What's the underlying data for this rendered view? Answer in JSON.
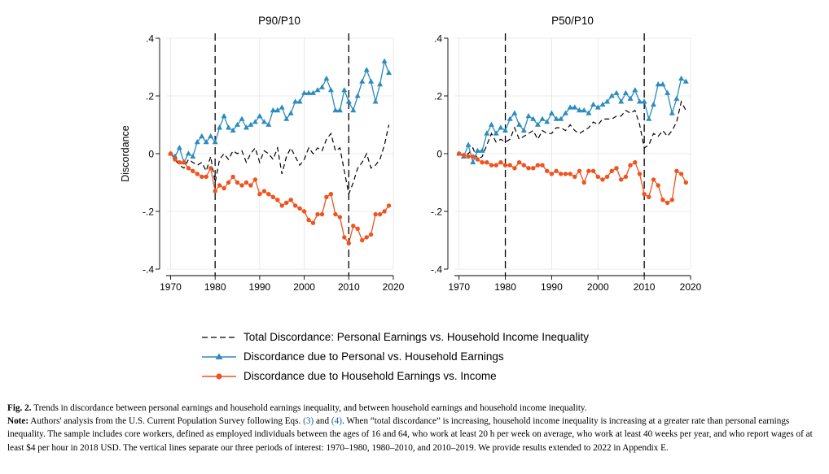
{
  "colors": {
    "total": "#000000",
    "personal": "#2b8cbe",
    "household": "#f0531f",
    "axis": "#000000",
    "grid": "#e4e4e4",
    "ref_line": "#000000"
  },
  "chart_data": [
    {
      "type": "line",
      "title": "P90/P10",
      "ylabel": "Discordance",
      "xlabel": "",
      "xlim": [
        1969,
        2020
      ],
      "ylim": [
        -0.4,
        0.4
      ],
      "xticks": [
        1970,
        1980,
        1990,
        2000,
        2010,
        2020
      ],
      "xtick_labels": [
        "1970",
        "1980",
        "1990",
        "2000",
        "2010",
        "2020"
      ],
      "yticks": [
        0.4,
        0.2,
        0,
        -0.2,
        -0.4
      ],
      "ytick_labels": [
        ".4",
        ".2",
        "0",
        "-.2",
        "-.4"
      ],
      "grid": true,
      "vlines": [
        1980,
        2010
      ],
      "x": [
        1970,
        1971,
        1972,
        1973,
        1974,
        1975,
        1976,
        1977,
        1978,
        1979,
        1980,
        1981,
        1982,
        1983,
        1984,
        1985,
        1986,
        1987,
        1988,
        1989,
        1990,
        1991,
        1992,
        1993,
        1994,
        1995,
        1996,
        1997,
        1998,
        1999,
        2000,
        2001,
        2002,
        2003,
        2004,
        2005,
        2006,
        2007,
        2008,
        2009,
        2010,
        2011,
        2012,
        2013,
        2014,
        2015,
        2016,
        2017,
        2018,
        2019
      ],
      "series": [
        {
          "name": "Total Discordance: Personal Earnings vs. Household Income Inequality",
          "key": "total",
          "values": [
            0.0,
            -0.02,
            -0.04,
            -0.05,
            -0.02,
            -0.03,
            -0.04,
            -0.03,
            -0.06,
            -0.01,
            -0.1,
            -0.02,
            0.0,
            -0.02,
            0.01,
            0.0,
            0.01,
            -0.03,
            0.0,
            0.02,
            -0.03,
            0.01,
            0.0,
            -0.02,
            0.02,
            -0.07,
            -0.01,
            0.02,
            -0.01,
            -0.04,
            -0.02,
            0.02,
            0.0,
            0.02,
            0.01,
            0.05,
            0.07,
            0.01,
            0.02,
            -0.06,
            -0.14,
            -0.1,
            -0.05,
            -0.03,
            0.0,
            -0.05,
            -0.04,
            -0.02,
            0.03,
            0.1
          ]
        },
        {
          "name": "Discordance due to Personal vs. Household Earnings",
          "key": "personal",
          "values": [
            0.0,
            -0.01,
            0.02,
            -0.03,
            0.0,
            -0.01,
            0.04,
            0.06,
            0.04,
            0.06,
            0.04,
            0.09,
            0.13,
            0.09,
            0.08,
            0.1,
            0.12,
            0.09,
            0.1,
            0.11,
            0.13,
            0.11,
            0.1,
            0.15,
            0.15,
            0.16,
            0.12,
            0.14,
            0.18,
            0.18,
            0.21,
            0.21,
            0.21,
            0.22,
            0.23,
            0.26,
            0.22,
            0.15,
            0.15,
            0.22,
            0.18,
            0.15,
            0.2,
            0.25,
            0.29,
            0.25,
            0.18,
            0.24,
            0.32,
            0.28
          ]
        },
        {
          "name": "Discordance due to Household Earnings vs. Income",
          "key": "household",
          "values": [
            0.0,
            -0.02,
            -0.03,
            -0.03,
            -0.05,
            -0.06,
            -0.07,
            -0.08,
            -0.08,
            -0.05,
            -0.13,
            -0.11,
            -0.12,
            -0.1,
            -0.08,
            -0.1,
            -0.11,
            -0.1,
            -0.11,
            -0.09,
            -0.14,
            -0.13,
            -0.14,
            -0.15,
            -0.16,
            -0.18,
            -0.17,
            -0.16,
            -0.18,
            -0.19,
            -0.2,
            -0.23,
            -0.24,
            -0.21,
            -0.21,
            -0.15,
            -0.14,
            -0.21,
            -0.22,
            -0.29,
            -0.31,
            -0.25,
            -0.26,
            -0.3,
            -0.29,
            -0.28,
            -0.21,
            -0.21,
            -0.2,
            -0.18
          ]
        }
      ]
    },
    {
      "type": "line",
      "title": "P50/P10",
      "ylabel": "",
      "xlabel": "",
      "xlim": [
        1969,
        2020
      ],
      "ylim": [
        -0.4,
        0.4
      ],
      "xticks": [
        1970,
        1980,
        1990,
        2000,
        2010,
        2020
      ],
      "xtick_labels": [
        "1970",
        "1980",
        "1990",
        "2000",
        "2010",
        "2020"
      ],
      "yticks": [
        0.4,
        0.2,
        0,
        -0.2,
        -0.4
      ],
      "ytick_labels": [
        ".4",
        ".2",
        "0",
        "-.2",
        "-.4"
      ],
      "grid": true,
      "vlines": [
        1980,
        2010
      ],
      "x": [
        1970,
        1971,
        1972,
        1973,
        1974,
        1975,
        1976,
        1977,
        1978,
        1979,
        1980,
        1981,
        1982,
        1983,
        1984,
        1985,
        1986,
        1987,
        1988,
        1989,
        1990,
        1991,
        1992,
        1993,
        1994,
        1995,
        1996,
        1997,
        1998,
        1999,
        2000,
        2001,
        2002,
        2003,
        2004,
        2005,
        2006,
        2007,
        2008,
        2009,
        2010,
        2011,
        2012,
        2013,
        2014,
        2015,
        2016,
        2017,
        2018,
        2019
      ],
      "series": [
        {
          "name": "Total Discordance: Personal Earnings vs. Household Income Inequality",
          "key": "total",
          "values": [
            0.0,
            -0.005,
            0.0,
            0.02,
            -0.02,
            -0.01,
            0.03,
            0.07,
            0.04,
            0.05,
            0.04,
            0.05,
            0.09,
            0.05,
            0.06,
            0.07,
            0.08,
            0.05,
            0.08,
            0.07,
            0.07,
            0.09,
            0.09,
            0.08,
            0.1,
            0.08,
            0.07,
            0.08,
            0.09,
            0.11,
            0.1,
            0.12,
            0.12,
            0.12,
            0.13,
            0.13,
            0.15,
            0.14,
            0.15,
            0.1,
            0.02,
            0.03,
            0.07,
            0.06,
            0.08,
            0.06,
            0.08,
            0.11,
            0.18,
            0.15
          ]
        },
        {
          "name": "Discordance due to Personal vs. Household Earnings",
          "key": "personal",
          "values": [
            0.0,
            -0.01,
            0.03,
            -0.03,
            0.01,
            0.01,
            0.07,
            0.1,
            0.07,
            0.09,
            0.08,
            0.12,
            0.14,
            0.1,
            0.08,
            0.13,
            0.12,
            0.1,
            0.12,
            0.11,
            0.14,
            0.12,
            0.12,
            0.14,
            0.16,
            0.16,
            0.15,
            0.15,
            0.14,
            0.17,
            0.16,
            0.17,
            0.18,
            0.2,
            0.21,
            0.18,
            0.21,
            0.19,
            0.22,
            0.18,
            0.18,
            0.12,
            0.17,
            0.24,
            0.24,
            0.21,
            0.14,
            0.19,
            0.26,
            0.25
          ]
        },
        {
          "name": "Discordance due to Household Earnings vs. Income",
          "key": "household",
          "values": [
            0.0,
            -0.005,
            -0.01,
            -0.01,
            -0.02,
            -0.03,
            -0.03,
            -0.04,
            -0.04,
            -0.03,
            -0.04,
            -0.04,
            -0.05,
            -0.03,
            -0.04,
            -0.05,
            -0.05,
            -0.04,
            -0.04,
            -0.06,
            -0.07,
            -0.06,
            -0.07,
            -0.07,
            -0.07,
            -0.08,
            -0.06,
            -0.1,
            -0.06,
            -0.06,
            -0.08,
            -0.09,
            -0.08,
            -0.06,
            -0.05,
            -0.09,
            -0.08,
            -0.04,
            -0.03,
            -0.07,
            -0.14,
            -0.15,
            -0.09,
            -0.11,
            -0.16,
            -0.17,
            -0.16,
            -0.06,
            -0.07,
            -0.1
          ]
        }
      ]
    }
  ],
  "legend": [
    {
      "key": "total",
      "label": "Total Discordance: Personal Earnings vs. Household Income Inequality"
    },
    {
      "key": "personal",
      "label": "Discordance due to Personal vs. Household Earnings"
    },
    {
      "key": "household",
      "label": "Discordance due to Household Earnings vs. Income"
    }
  ],
  "caption": {
    "fig_label": "Fig. 2.",
    "fig_text": " Trends in discordance between personal earnings and household earnings inequality, and between household earnings and household income inequality.",
    "note_label": "Note:",
    "note_a": " Authors' analysis from the U.S. Current Population Survey following Eqs. ",
    "eq1": "(3)",
    "note_b": " and ",
    "eq2": "(4)",
    "note_c": ". When “total discordance” is increasing, household income inequality is increasing at a greater rate than personal earnings inequality. The sample includes core workers, defined as employed individuals between the ages of 16 and 64, who work at least 20 h per week on average, who work at least 40 weeks per year, and who report wages of at least $4 per hour in 2018 USD. The vertical lines separate our three periods of interest: 1970–1980, 1980–2010, and 2010–2019. We provide results extended to 2022 in Appendix E."
  }
}
